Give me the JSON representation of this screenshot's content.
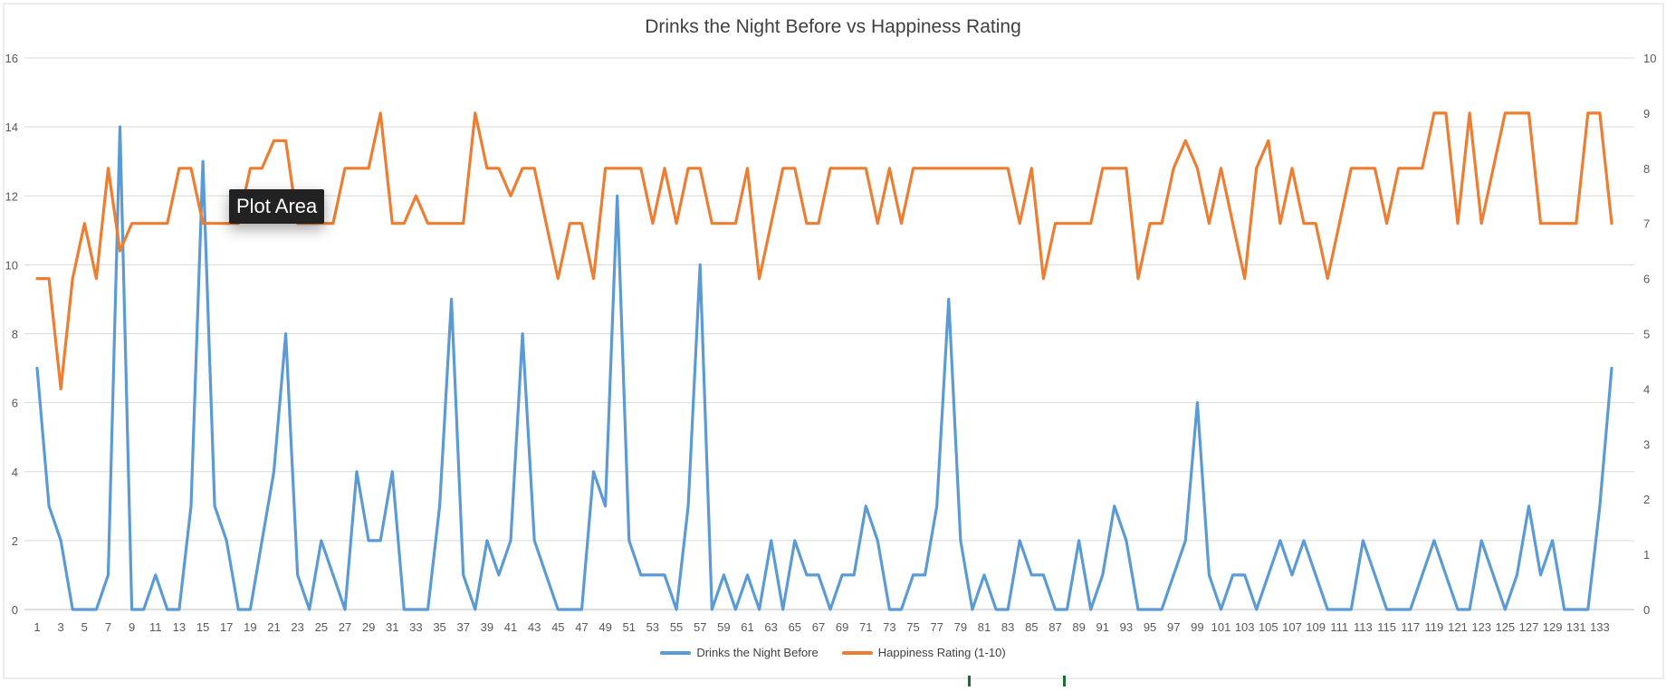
{
  "chart_data": {
    "type": "line",
    "title": "Drinks the Night Before vs Happiness Rating",
    "x": [
      1,
      2,
      3,
      4,
      5,
      6,
      7,
      8,
      9,
      10,
      11,
      12,
      13,
      14,
      15,
      16,
      17,
      18,
      19,
      20,
      21,
      22,
      23,
      24,
      25,
      26,
      27,
      28,
      29,
      30,
      31,
      32,
      33,
      34,
      35,
      36,
      37,
      38,
      39,
      40,
      41,
      42,
      43,
      44,
      45,
      46,
      47,
      48,
      49,
      50,
      51,
      52,
      53,
      54,
      55,
      56,
      57,
      58,
      59,
      60,
      61,
      62,
      63,
      64,
      65,
      66,
      67,
      68,
      69,
      70,
      71,
      72,
      73,
      74,
      75,
      76,
      77,
      78,
      79,
      80,
      81,
      82,
      83,
      84,
      85,
      86,
      87,
      88,
      89,
      90,
      91,
      92,
      93,
      94,
      95,
      96,
      97,
      98,
      99,
      100,
      101,
      102,
      103,
      104,
      105,
      106,
      107,
      108,
      109,
      110,
      111,
      112,
      113,
      114,
      115,
      116,
      117,
      118,
      119,
      120,
      121,
      122,
      123,
      124,
      125,
      126,
      127,
      128,
      129,
      130,
      131,
      132,
      133,
      134
    ],
    "x_tick_labels": [
      "1",
      "3",
      "5",
      "7",
      "9",
      "11",
      "13",
      "15",
      "17",
      "19",
      "21",
      "23",
      "25",
      "27",
      "29",
      "31",
      "33",
      "35",
      "37",
      "39",
      "41",
      "43",
      "45",
      "47",
      "49",
      "51",
      "53",
      "55",
      "57",
      "59",
      "61",
      "63",
      "65",
      "67",
      "69",
      "71",
      "73",
      "75",
      "77",
      "79",
      "81",
      "83",
      "85",
      "87",
      "89",
      "91",
      "93",
      "95",
      "97",
      "99",
      "101",
      "103",
      "105",
      "107",
      "109",
      "111",
      "113",
      "115",
      "117",
      "119",
      "121",
      "123",
      "125",
      "127",
      "129",
      "131",
      "133"
    ],
    "y_left_ticks": [
      "0",
      "2",
      "4",
      "6",
      "8",
      "10",
      "12",
      "14",
      "16"
    ],
    "y_right_ticks": [
      "0",
      "1",
      "2",
      "3",
      "4",
      "5",
      "6",
      "7",
      "8",
      "9",
      "10"
    ],
    "ylim_left": [
      0,
      16
    ],
    "ylim_right": [
      0,
      10
    ],
    "grid": true,
    "legend_position": "bottom",
    "series": [
      {
        "name": "Drinks the Night Before",
        "axis": "left",
        "color": "#5b9bd5",
        "values": [
          7,
          3,
          2,
          0,
          0,
          0,
          1,
          14,
          0,
          0,
          1,
          0,
          0,
          3,
          13,
          3,
          2,
          0,
          0,
          2,
          4,
          8,
          1,
          0,
          2,
          1,
          0,
          4,
          2,
          2,
          4,
          0,
          0,
          0,
          3,
          9,
          1,
          0,
          2,
          1,
          2,
          8,
          2,
          1,
          0,
          0,
          0,
          4,
          3,
          12,
          2,
          1,
          1,
          1,
          0,
          3,
          10,
          0,
          1,
          0,
          1,
          0,
          2,
          0,
          2,
          1,
          1,
          0,
          1,
          1,
          3,
          2,
          0,
          0,
          1,
          1,
          3,
          9,
          2,
          0,
          1,
          0,
          0,
          2,
          1,
          1,
          0,
          0,
          2,
          0,
          1,
          3,
          2,
          0,
          0,
          0,
          1,
          2,
          6,
          1,
          0,
          1,
          1,
          0,
          1,
          2,
          1,
          2,
          1,
          0,
          0,
          0,
          2,
          1,
          0,
          0,
          0,
          1,
          2,
          1,
          0,
          0,
          2,
          1,
          0,
          1,
          3,
          1,
          2,
          0,
          0,
          0,
          3,
          7
        ]
      },
      {
        "name": "Happiness Rating (1-10)",
        "axis": "right",
        "color": "#ed7d31",
        "values": [
          6,
          6,
          4,
          6,
          7,
          6,
          8,
          6.5,
          7,
          7,
          7,
          7,
          8,
          8,
          7,
          7,
          7,
          7,
          8,
          8,
          8.5,
          8.5,
          7,
          7,
          7,
          7,
          8,
          8,
          8,
          9,
          7,
          7,
          7.5,
          7,
          7,
          7,
          7,
          9,
          8,
          8,
          7.5,
          8,
          8,
          7,
          6,
          7,
          7,
          6,
          8,
          8,
          8,
          8,
          7,
          8,
          7,
          8,
          8,
          7,
          7,
          7,
          8,
          6,
          7,
          8,
          8,
          7,
          7,
          8,
          8,
          8,
          8,
          7,
          8,
          7,
          8,
          8,
          8,
          8,
          8,
          8,
          8,
          8,
          8,
          7,
          8,
          6,
          7,
          7,
          7,
          7,
          8,
          8,
          8,
          6,
          7,
          7,
          8,
          8.5,
          8,
          7,
          8,
          7,
          6,
          8,
          8.5,
          7,
          8,
          7,
          7,
          6,
          7,
          8,
          8,
          8,
          7,
          8,
          8,
          8,
          9,
          9,
          7,
          9,
          7,
          8,
          9,
          9,
          9,
          7,
          7,
          7,
          7,
          9,
          9,
          7
        ]
      }
    ]
  },
  "tooltip": {
    "text": "Plot Area"
  }
}
